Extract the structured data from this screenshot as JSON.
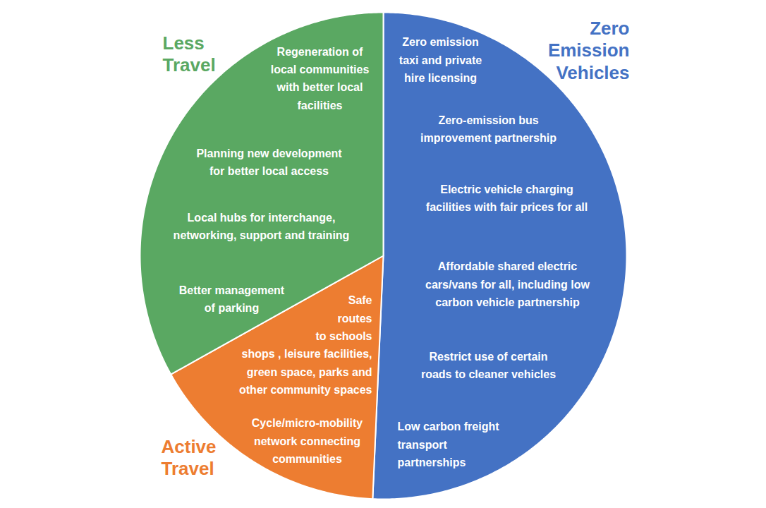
{
  "chart_data": {
    "type": "pie",
    "categories": [
      "Zero\nEmission\nVehicles",
      "Active\nTravel",
      "Less\nTravel"
    ],
    "values": [
      50.7,
      16.2,
      33.1
    ],
    "colors": [
      "#4472c4",
      "#ed7d31",
      "#5aa862"
    ],
    "annotations": [
      [
        "Zero emission\ntaxi and private\nhire licensing",
        "Zero-emission bus\nimprovement partnership",
        "Electric vehicle charging\nfacilities with fair prices for all",
        "Affordable shared electric\ncars/vans for all, including low\ncarbon vehicle partnership",
        "Restrict use of certain\nroads to cleaner vehicles",
        "Low carbon freight\ntransport\npartnerships"
      ],
      [
        "Safe\nroutes\nto schools\nshops , leisure facilities,\ngreen space, parks and\nother community spaces",
        "Cycle/micro-mobility\nnetwork connecting\ncommunities"
      ],
      [
        "Regeneration of\nlocal communities\nwith better local\nfacilities",
        "Planning new development\nfor better local access",
        "Local hubs for interchange,\nnetworking, support and training",
        "Better management\nof parking"
      ]
    ]
  }
}
